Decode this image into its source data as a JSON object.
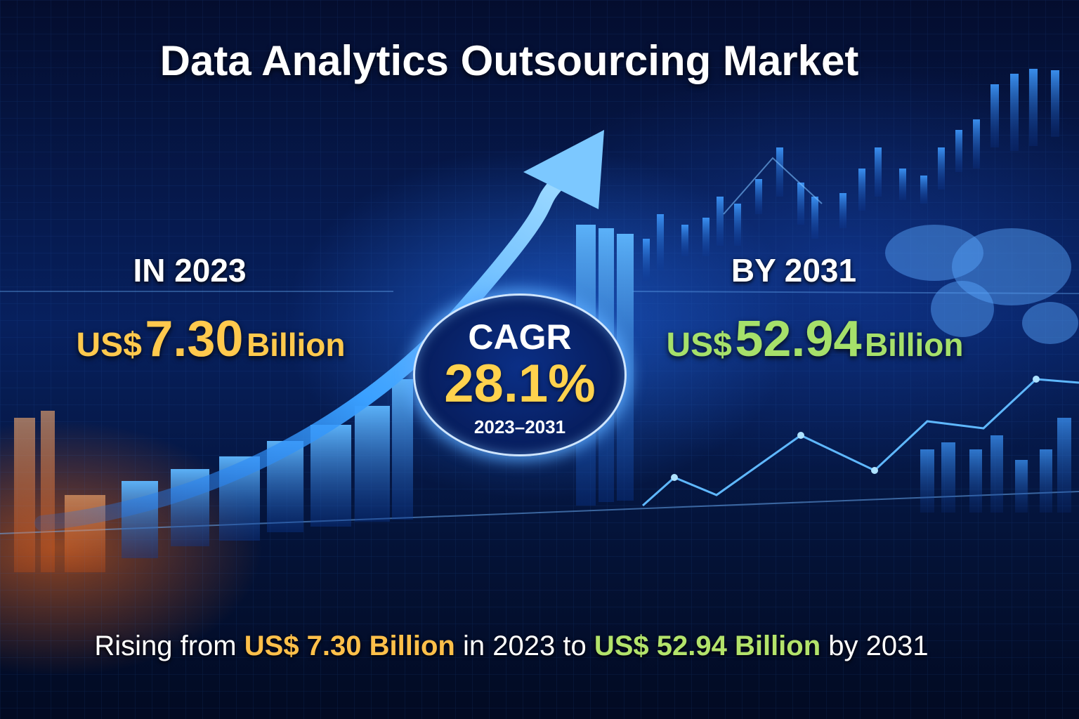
{
  "title": "Data Analytics Outsourcing Market",
  "left": {
    "label": "IN 2023",
    "currency": "US$",
    "value": "7.30",
    "unit": "Billion"
  },
  "right": {
    "label": "BY 2031",
    "currency": "US$",
    "value": "52.94",
    "unit": "Billion"
  },
  "cagr": {
    "label": "CAGR",
    "value": "28.1%",
    "period": "2023–2031"
  },
  "footer": {
    "part1": "Rising from",
    "amount1": "US$ 7.30 Billion",
    "part2": "in 2023 to",
    "amount2": "US$ 52.94 Billion",
    "part3": "by 2031"
  },
  "colors": {
    "accent_2023": "#ffc94d",
    "accent_2031": "#a6e06a",
    "background": "#041338",
    "glow": "#3a8cff"
  },
  "icons": [
    "growth-arrow-icon",
    "world-map-icon"
  ]
}
